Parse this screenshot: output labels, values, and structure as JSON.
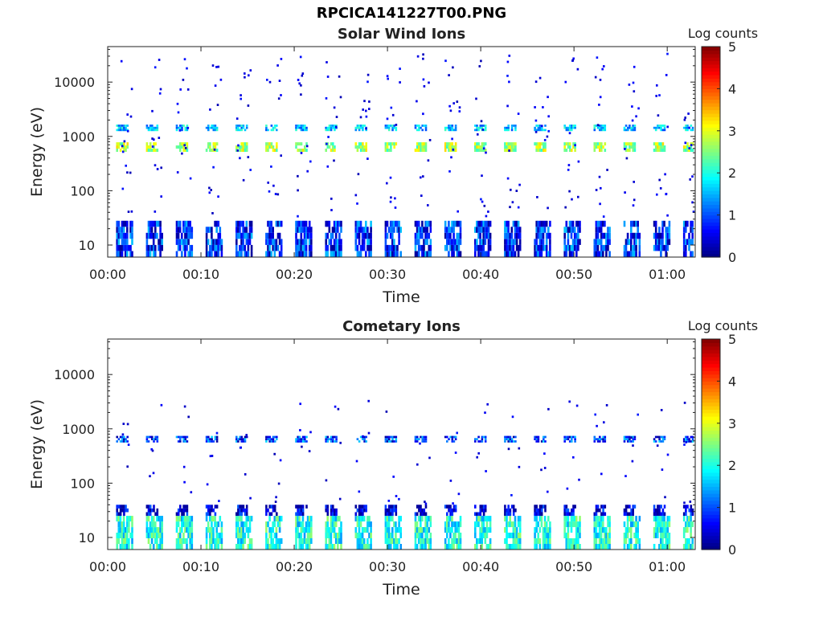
{
  "figure": {
    "title": "RPCICA141227T00.PNG"
  },
  "chart_data": [
    {
      "type": "heatmap",
      "title": "Solar Wind Ions",
      "xlabel": "Time",
      "ylabel": "Energy (eV)",
      "x_ticks": [
        "00:00",
        "00:10",
        "00:20",
        "00:30",
        "00:40",
        "00:50",
        "01:00"
      ],
      "x_range_minutes": [
        0,
        63
      ],
      "y_scale": "log",
      "y_ticks": [
        10,
        100,
        1000,
        10000
      ],
      "y_range": [
        6,
        45000
      ],
      "colorbar": {
        "label": "Log counts",
        "range": [
          0,
          5
        ],
        "ticks": [
          "0",
          "1",
          "2",
          "3",
          "4",
          "5"
        ],
        "colormap": "jet"
      },
      "scan_start_minutes": [
        0.9,
        4.1,
        7.3,
        10.5,
        13.7,
        16.9,
        20.1,
        23.3,
        26.5,
        29.7,
        32.9,
        36.1,
        39.3,
        42.5,
        45.7,
        48.9,
        52.1,
        55.3,
        58.5,
        61.7
      ],
      "bands": [
        {
          "name": "solar wind proton peak",
          "energy_low": 520,
          "energy_high": 780,
          "log_counts": 2.7
        },
        {
          "name": "alpha peak",
          "energy_low": 1250,
          "energy_high": 1650,
          "log_counts": 1.6
        },
        {
          "name": "low-energy ions",
          "energy_low": 6,
          "energy_high": 28,
          "log_counts": 0.8
        }
      ]
    },
    {
      "type": "heatmap",
      "title": "Cometary Ions",
      "xlabel": "Time",
      "ylabel": "Energy (eV)",
      "x_ticks": [
        "00:00",
        "00:10",
        "00:20",
        "00:30",
        "00:40",
        "00:50",
        "01:00"
      ],
      "x_range_minutes": [
        0,
        63
      ],
      "y_scale": "log",
      "y_ticks": [
        10,
        100,
        1000,
        10000
      ],
      "y_range": [
        6,
        45000
      ],
      "colorbar": {
        "label": "Log counts",
        "range": [
          0,
          5
        ],
        "ticks": [
          "0",
          "1",
          "2",
          "3",
          "4",
          "5"
        ],
        "colormap": "jet"
      },
      "scan_start_minutes": [
        0.9,
        4.1,
        7.3,
        10.5,
        13.7,
        16.9,
        20.1,
        23.3,
        26.5,
        29.7,
        32.9,
        36.1,
        39.3,
        42.5,
        45.7,
        48.9,
        52.1,
        55.3,
        58.5,
        61.7
      ],
      "bands": [
        {
          "name": "proton peak",
          "energy_low": 560,
          "energy_high": 740,
          "log_counts": 0.9
        },
        {
          "name": "low-energy cometary ions",
          "energy_low": 6,
          "energy_high": 25,
          "log_counts": 2.0
        },
        {
          "name": "low-energy edge",
          "energy_low": 25,
          "energy_high": 40,
          "log_counts": 0.3
        }
      ]
    }
  ]
}
